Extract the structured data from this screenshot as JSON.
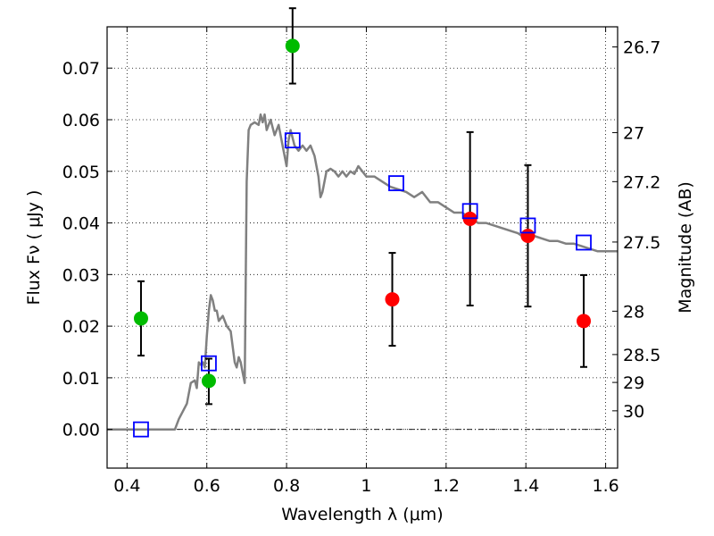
{
  "chart_data": {
    "type": "scatter",
    "xlabel": "Wavelength  λ (μm)",
    "ylabel": "Flux  Fν  ( μJy )",
    "y2label": "Magnitude (AB)",
    "xlim": [
      0.35,
      1.63
    ],
    "ylim": [
      -0.0075,
      0.078
    ],
    "x_ticks": [
      {
        "value": 0.4,
        "label": "0.4"
      },
      {
        "value": 0.6,
        "label": "0.6"
      },
      {
        "value": 0.8,
        "label": "0.8"
      },
      {
        "value": 1.0,
        "label": "1"
      },
      {
        "value": 1.2,
        "label": "1.2"
      },
      {
        "value": 1.4,
        "label": "1.4"
      },
      {
        "value": 1.6,
        "label": "1.6"
      }
    ],
    "y_ticks": [
      {
        "value": 0.0,
        "label": "0.00"
      },
      {
        "value": 0.01,
        "label": "0.01"
      },
      {
        "value": 0.02,
        "label": "0.02"
      },
      {
        "value": 0.03,
        "label": "0.03"
      },
      {
        "value": 0.04,
        "label": "0.04"
      },
      {
        "value": 0.05,
        "label": "0.05"
      },
      {
        "value": 0.06,
        "label": "0.06"
      },
      {
        "value": 0.07,
        "label": "0.07"
      }
    ],
    "mag_ticks": [
      {
        "flux": 0.0741,
        "label": "26.7"
      },
      {
        "flux": 0.0575,
        "label": "27"
      },
      {
        "flux": 0.048,
        "label": "27.2"
      },
      {
        "flux": 0.0363,
        "label": "27.5"
      },
      {
        "flux": 0.0229,
        "label": "28"
      },
      {
        "flux": 0.0145,
        "label": "28.5"
      },
      {
        "flux": 0.0091,
        "label": "29"
      },
      {
        "flux": 0.0036,
        "label": "30"
      }
    ],
    "grid": true,
    "series": [
      {
        "kind": "line",
        "color": "#808080",
        "points": [
          [
            0.35,
            0.0
          ],
          [
            0.52,
            0.0
          ],
          [
            0.53,
            0.002
          ],
          [
            0.55,
            0.005
          ],
          [
            0.56,
            0.009
          ],
          [
            0.57,
            0.0095
          ],
          [
            0.575,
            0.008
          ],
          [
            0.58,
            0.013
          ],
          [
            0.585,
            0.0125
          ],
          [
            0.59,
            0.013
          ],
          [
            0.595,
            0.012
          ],
          [
            0.6,
            0.018
          ],
          [
            0.605,
            0.023
          ],
          [
            0.61,
            0.026
          ],
          [
            0.615,
            0.025
          ],
          [
            0.62,
            0.023
          ],
          [
            0.625,
            0.023
          ],
          [
            0.63,
            0.021
          ],
          [
            0.64,
            0.022
          ],
          [
            0.65,
            0.02
          ],
          [
            0.66,
            0.019
          ],
          [
            0.67,
            0.013
          ],
          [
            0.675,
            0.012
          ],
          [
            0.68,
            0.014
          ],
          [
            0.685,
            0.013
          ],
          [
            0.69,
            0.011
          ],
          [
            0.695,
            0.009
          ],
          [
            0.7,
            0.048
          ],
          [
            0.705,
            0.058
          ],
          [
            0.71,
            0.059
          ],
          [
            0.72,
            0.0595
          ],
          [
            0.73,
            0.059
          ],
          [
            0.735,
            0.061
          ],
          [
            0.74,
            0.0595
          ],
          [
            0.745,
            0.061
          ],
          [
            0.75,
            0.058
          ],
          [
            0.76,
            0.06
          ],
          [
            0.77,
            0.057
          ],
          [
            0.78,
            0.059
          ],
          [
            0.79,
            0.055
          ],
          [
            0.8,
            0.051
          ],
          [
            0.805,
            0.056
          ],
          [
            0.81,
            0.058
          ],
          [
            0.82,
            0.055
          ],
          [
            0.83,
            0.054
          ],
          [
            0.84,
            0.055
          ],
          [
            0.85,
            0.054
          ],
          [
            0.86,
            0.055
          ],
          [
            0.87,
            0.053
          ],
          [
            0.88,
            0.049
          ],
          [
            0.885,
            0.045
          ],
          [
            0.89,
            0.046
          ],
          [
            0.9,
            0.05
          ],
          [
            0.91,
            0.0505
          ],
          [
            0.92,
            0.05
          ],
          [
            0.93,
            0.049
          ],
          [
            0.94,
            0.05
          ],
          [
            0.95,
            0.049
          ],
          [
            0.96,
            0.05
          ],
          [
            0.97,
            0.0495
          ],
          [
            0.98,
            0.051
          ],
          [
            0.99,
            0.05
          ],
          [
            1.0,
            0.049
          ],
          [
            1.02,
            0.049
          ],
          [
            1.04,
            0.048
          ],
          [
            1.06,
            0.047
          ],
          [
            1.08,
            0.0465
          ],
          [
            1.1,
            0.046
          ],
          [
            1.12,
            0.045
          ],
          [
            1.14,
            0.046
          ],
          [
            1.16,
            0.044
          ],
          [
            1.18,
            0.044
          ],
          [
            1.2,
            0.043
          ],
          [
            1.22,
            0.042
          ],
          [
            1.24,
            0.042
          ],
          [
            1.26,
            0.041
          ],
          [
            1.28,
            0.04
          ],
          [
            1.3,
            0.04
          ],
          [
            1.32,
            0.0395
          ],
          [
            1.34,
            0.039
          ],
          [
            1.36,
            0.0385
          ],
          [
            1.38,
            0.038
          ],
          [
            1.4,
            0.037
          ],
          [
            1.42,
            0.0375
          ],
          [
            1.44,
            0.037
          ],
          [
            1.46,
            0.0365
          ],
          [
            1.48,
            0.0365
          ],
          [
            1.5,
            0.036
          ],
          [
            1.52,
            0.036
          ],
          [
            1.54,
            0.0355
          ],
          [
            1.56,
            0.035
          ],
          [
            1.58,
            0.0345
          ],
          [
            1.6,
            0.0345
          ],
          [
            1.63,
            0.0345
          ]
        ]
      },
      {
        "kind": "points",
        "marker": "circle",
        "color": "#00bb00",
        "points": [
          {
            "x": 0.435,
            "y": 0.0215,
            "yerr": [
              0.0072,
              0.0072
            ]
          },
          {
            "x": 0.605,
            "y": 0.0094,
            "yerr": [
              0.0045,
              0.0043
            ]
          },
          {
            "x": 0.815,
            "y": 0.0743,
            "yerr": [
              0.0073,
              0.0073
            ]
          }
        ]
      },
      {
        "kind": "points",
        "marker": "circle",
        "color": "#ff0000",
        "points": [
          {
            "x": 1.065,
            "y": 0.0252,
            "yerr": [
              0.009,
              0.009
            ]
          },
          {
            "x": 1.26,
            "y": 0.0408,
            "yerr": [
              0.0168,
              0.0168
            ]
          },
          {
            "x": 1.405,
            "y": 0.0375,
            "yerr": [
              0.0137,
              0.0137
            ]
          },
          {
            "x": 1.545,
            "y": 0.021,
            "yerr": [
              0.0089,
              0.0089
            ]
          }
        ]
      },
      {
        "kind": "points",
        "marker": "square",
        "color": "#0000ff",
        "points": [
          {
            "x": 0.435,
            "y": 0.0
          },
          {
            "x": 0.605,
            "y": 0.0128
          },
          {
            "x": 0.815,
            "y": 0.056
          },
          {
            "x": 1.075,
            "y": 0.0477
          },
          {
            "x": 1.26,
            "y": 0.0423
          },
          {
            "x": 1.405,
            "y": 0.0395
          },
          {
            "x": 1.545,
            "y": 0.0362
          }
        ]
      }
    ]
  }
}
